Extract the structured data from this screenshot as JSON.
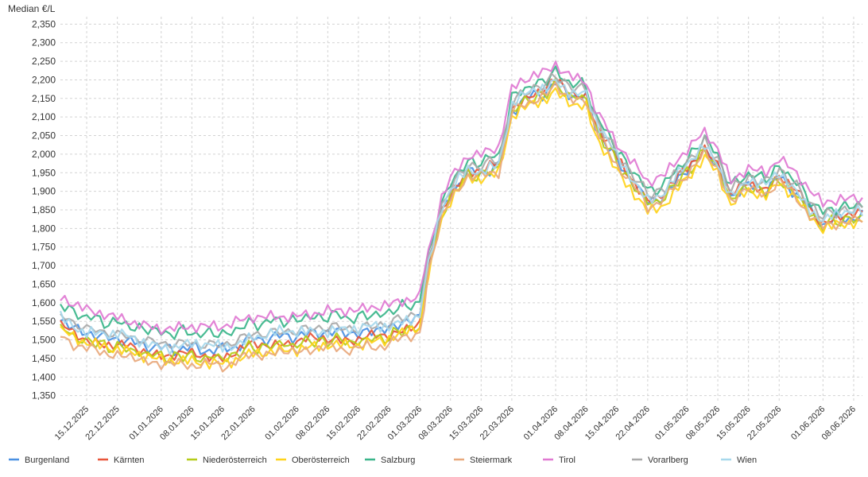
{
  "chart_data": {
    "type": "line",
    "title": "",
    "ylabel": "Median €/L",
    "xlabel": "",
    "ylim": [
      1.33,
      2.37
    ],
    "yticks": [
      1.35,
      1.4,
      1.45,
      1.5,
      1.55,
      1.6,
      1.65,
      1.7,
      1.75,
      1.8,
      1.85,
      1.9,
      1.95,
      2.0,
      2.05,
      2.1,
      2.15,
      2.2,
      2.25,
      2.3,
      2.35
    ],
    "ytick_labels": [
      "1,350",
      "1,400",
      "1,450",
      "1,500",
      "1,550",
      "1,600",
      "1,650",
      "1,700",
      "1,750",
      "1,800",
      "1,850",
      "1,900",
      "1,950",
      "2,000",
      "2,050",
      "2,100",
      "2,150",
      "2,200",
      "2,250",
      "2,300",
      "2,350"
    ],
    "x_range": [
      "2025-12-09",
      "2026-06-10"
    ],
    "xticks": [
      "2025-12-15",
      "2025-12-22",
      "2026-01-01",
      "2026-01-08",
      "2026-01-15",
      "2026-01-22",
      "2026-02-01",
      "2026-02-08",
      "2026-02-15",
      "2026-02-22",
      "2026-03-01",
      "2026-03-08",
      "2026-03-15",
      "2026-03-22",
      "2026-04-01",
      "2026-04-08",
      "2026-04-15",
      "2026-04-22",
      "2026-05-01",
      "2026-05-08",
      "2026-05-15",
      "2026-05-22",
      "2026-06-01",
      "2026-06-08"
    ],
    "xtick_labels": [
      "15.12.2025",
      "22.12.2025",
      "01.01.2026",
      "08.01.2026",
      "15.01.2026",
      "22.01.2026",
      "01.02.2026",
      "08.02.2026",
      "15.02.2026",
      "22.02.2026",
      "01.03.2026",
      "08.03.2026",
      "15.03.2026",
      "22.03.2026",
      "01.04.2026",
      "08.04.2026",
      "15.04.2026",
      "22.04.2026",
      "01.05.2026",
      "08.05.2026",
      "15.05.2026",
      "22.05.2026",
      "01.06.2026",
      "08.06.2026"
    ],
    "grid": true,
    "legend_position": "bottom",
    "base_curve": {
      "x": [
        "2025-12-09",
        "2025-12-15",
        "2025-12-22",
        "2026-01-01",
        "2026-01-08",
        "2026-01-15",
        "2026-01-22",
        "2026-02-01",
        "2026-02-08",
        "2026-02-15",
        "2026-02-22",
        "2026-03-01",
        "2026-03-03",
        "2026-03-06",
        "2026-03-08",
        "2026-03-12",
        "2026-03-15",
        "2026-03-19",
        "2026-03-22",
        "2026-03-27",
        "2026-03-30",
        "2026-04-01",
        "2026-04-05",
        "2026-04-08",
        "2026-04-10",
        "2026-04-15",
        "2026-04-19",
        "2026-04-22",
        "2026-04-26",
        "2026-05-01",
        "2026-05-05",
        "2026-05-08",
        "2026-05-11",
        "2026-05-15",
        "2026-05-19",
        "2026-05-22",
        "2026-05-26",
        "2026-06-01",
        "2026-06-05",
        "2026-06-10"
      ],
      "y": [
        1.55,
        1.515,
        1.5,
        1.475,
        1.475,
        1.47,
        1.5,
        1.51,
        1.52,
        1.515,
        1.53,
        1.56,
        1.7,
        1.85,
        1.9,
        1.96,
        1.96,
        1.975,
        2.13,
        2.17,
        2.18,
        2.2,
        2.17,
        2.16,
        2.09,
        1.99,
        1.93,
        1.88,
        1.9,
        1.97,
        2.02,
        1.98,
        1.89,
        1.93,
        1.91,
        1.95,
        1.9,
        1.82,
        1.84,
        1.84
      ]
    },
    "series": [
      {
        "name": "Burgenland",
        "color": "#4a90e2",
        "offset_pre": 0.002,
        "offset_post": -0.01,
        "amp": 0.02,
        "phase": 0.0,
        "freq": 1.0
      },
      {
        "name": "Kärnten",
        "color": "#e8553a",
        "offset_pre": -0.015,
        "offset_post": -0.005,
        "amp": 0.018,
        "phase": 1.3,
        "freq": 1.1
      },
      {
        "name": "Niederösterreich",
        "color": "#b5cc18",
        "offset_pre": -0.02,
        "offset_post": -0.015,
        "amp": 0.02,
        "phase": 2.1,
        "freq": 0.9
      },
      {
        "name": "Oberösterreich",
        "color": "#ffd31a",
        "offset_pre": -0.03,
        "offset_post": -0.03,
        "amp": 0.022,
        "phase": 0.7,
        "freq": 1.2
      },
      {
        "name": "Salzburg",
        "color": "#3ab58a",
        "offset_pre": 0.045,
        "offset_post": 0.02,
        "amp": 0.02,
        "phase": 3.0,
        "freq": 0.95
      },
      {
        "name": "Steiermark",
        "color": "#e8a87c",
        "offset_pre": -0.04,
        "offset_post": -0.02,
        "amp": 0.018,
        "phase": 4.2,
        "freq": 1.05
      },
      {
        "name": "Tirol",
        "color": "#e07ad2",
        "offset_pre": 0.06,
        "offset_post": 0.04,
        "amp": 0.02,
        "phase": 5.1,
        "freq": 1.15
      },
      {
        "name": "Vorarlberg",
        "color": "#a9a9a9",
        "offset_pre": 0.015,
        "offset_post": 0.01,
        "amp": 0.02,
        "phase": 2.6,
        "freq": 0.85
      },
      {
        "name": "Wien",
        "color": "#a7d8ec",
        "offset_pre": 0.01,
        "offset_post": 0.0,
        "amp": 0.022,
        "phase": 1.8,
        "freq": 1.25
      }
    ]
  }
}
